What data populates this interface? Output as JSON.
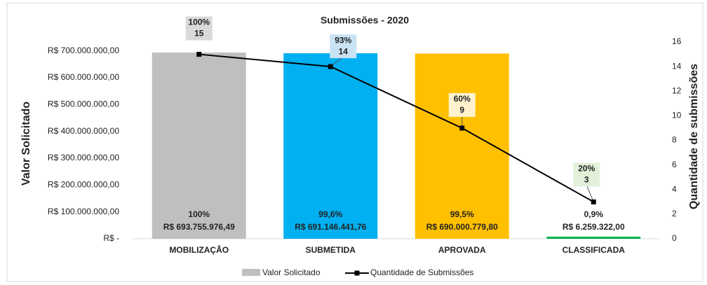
{
  "chart_data": {
    "type": "bar-line",
    "title": "Submissões - 2020",
    "y_label": "Valor Solicitado",
    "y2_label": "Quantidade de submissões",
    "categories": [
      "MOBILIZAÇÃO",
      "SUBMETIDA",
      "APROVADA",
      "CLASSIFICADA"
    ],
    "ylim": [
      0,
      733000000
    ],
    "yticks": [
      {
        "value": 0,
        "label": "R$ -"
      },
      {
        "value": 100000000,
        "label": "R$ 100.000.000,00"
      },
      {
        "value": 200000000,
        "label": "R$ 200.000.000,00"
      },
      {
        "value": 300000000,
        "label": "R$ 300.000.000,00"
      },
      {
        "value": 400000000,
        "label": "R$ 400.000.000,00"
      },
      {
        "value": 500000000,
        "label": "R$ 500.000.000,00"
      },
      {
        "value": 600000000,
        "label": "R$ 600.000.000,00"
      },
      {
        "value": 700000000,
        "label": "R$ 700.000.000,00"
      }
    ],
    "y2lim": [
      0,
      16
    ],
    "y2ticks": [
      0,
      2,
      4,
      6,
      8,
      10,
      12,
      14,
      16
    ],
    "series": [
      {
        "name": "Valor Solicitado",
        "type": "bar",
        "colors": [
          "#bfbfbf",
          "#00b0f0",
          "#ffc000",
          "#00b050"
        ],
        "values": [
          693755976.49,
          691146441.76,
          690000779.8,
          6259322.0
        ],
        "value_labels": [
          "R$ 693.755.976,49",
          "R$ 691.146.441,76",
          "R$ 690.000.779,80",
          "R$ 6.259.322,00"
        ],
        "shares": [
          100,
          99.6,
          99.5,
          0.9
        ],
        "share_labels": [
          "100%",
          "99,6%",
          "99,5%",
          "0,9%"
        ]
      },
      {
        "name": "Quantidade de Submissões",
        "type": "line",
        "axis": "y2",
        "color": "#000000",
        "values": [
          15,
          14,
          9,
          3
        ],
        "shares": [
          100,
          93,
          60,
          20
        ],
        "share_labels": [
          "100%",
          "93%",
          "60%",
          "20%"
        ],
        "label_fills": [
          "#d9d9d9",
          "#c9e3f5",
          "#fff2cc",
          "#e2f0d9"
        ]
      }
    ]
  }
}
